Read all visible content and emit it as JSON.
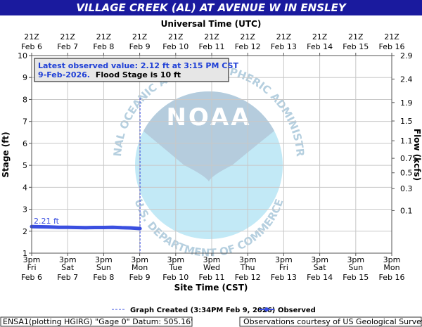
{
  "chart_data": {
    "type": "line",
    "title": "VILLAGE CREEK (AL) AT AVENUE W IN ENSLEY",
    "top_axis_label": "Universal Time (UTC)",
    "xlabel": "Site Time (CST)",
    "ylabel": "Stage (ft)",
    "y2label": "Flow (kcfs)",
    "ylim": [
      1,
      10
    ],
    "yticks": [
      "1",
      "2",
      "3",
      "4",
      "5",
      "6",
      "7",
      "8",
      "9",
      "10"
    ],
    "y2ticks": [
      {
        "label": "0.1",
        "stage": 2.94
      },
      {
        "label": "0.3",
        "stage": 3.94
      },
      {
        "label": "0.5",
        "stage": 4.66
      },
      {
        "label": "0.75",
        "stage": 5.32
      },
      {
        "label": "1.1",
        "stage": 6.12
      },
      {
        "label": "1.5",
        "stage": 7.02
      },
      {
        "label": "1.9",
        "stage": 7.86
      },
      {
        "label": "2.4",
        "stage": 8.93
      },
      {
        "label": "2.9",
        "stage": 10.0
      }
    ],
    "xlim_days": [
      0,
      10
    ],
    "x_ticks_site": [
      {
        "top": "3pm",
        "mid": "Fri",
        "date": "Feb 6"
      },
      {
        "top": "3pm",
        "mid": "Sat",
        "date": "Feb 7"
      },
      {
        "top": "3pm",
        "mid": "Sun",
        "date": "Feb 8"
      },
      {
        "top": "3pm",
        "mid": "Mon",
        "date": "Feb 9"
      },
      {
        "top": "3pm",
        "mid": "Tue",
        "date": "Feb 10"
      },
      {
        "top": "3pm",
        "mid": "Wed",
        "date": "Feb 11"
      },
      {
        "top": "3pm",
        "mid": "Thu",
        "date": "Feb 12"
      },
      {
        "top": "3pm",
        "mid": "Fri",
        "date": "Feb 13"
      },
      {
        "top": "3pm",
        "mid": "Sat",
        "date": "Feb 14"
      },
      {
        "top": "3pm",
        "mid": "Sun",
        "date": "Feb 15"
      },
      {
        "top": "3pm",
        "mid": "Mon",
        "date": "Feb 16"
      }
    ],
    "x_ticks_utc": [
      {
        "time": "21Z",
        "date": "Feb 6"
      },
      {
        "time": "21Z",
        "date": "Feb 7"
      },
      {
        "time": "21Z",
        "date": "Feb 8"
      },
      {
        "time": "21Z",
        "date": "Feb 9"
      },
      {
        "time": "21Z",
        "date": "Feb 10"
      },
      {
        "time": "21Z",
        "date": "Feb 11"
      },
      {
        "time": "21Z",
        "date": "Feb 12"
      },
      {
        "time": "21Z",
        "date": "Feb 13"
      },
      {
        "time": "21Z",
        "date": "Feb 14"
      },
      {
        "time": "21Z",
        "date": "Feb 15"
      },
      {
        "time": "21Z",
        "date": "Feb 16"
      }
    ],
    "series": [
      {
        "name": "Observed",
        "color": "#3a4fe0",
        "x_days": [
          0.0,
          0.25,
          0.5,
          0.75,
          1.0,
          1.25,
          1.5,
          1.75,
          2.0,
          2.25,
          2.5,
          2.75,
          3.0,
          3.01
        ],
        "values": [
          2.21,
          2.2,
          2.19,
          2.18,
          2.18,
          2.17,
          2.16,
          2.17,
          2.17,
          2.18,
          2.16,
          2.15,
          2.12,
          2.12
        ]
      }
    ],
    "first_value_label": "2.21 ft",
    "graph_created_x_days": 3.01,
    "grid": true
  },
  "notice": {
    "line1": "Latest observed value: 2.12 ft at 3:15 PM CST",
    "line2_date": "9-Feb-2026.",
    "line2_rest": "Flood Stage is 10 ft"
  },
  "legend": {
    "created": "Graph Created (3:34PM Feb 9, 2026)",
    "observed": "Observed"
  },
  "footer": {
    "left": "ENSA1(plotting HGIRG) \"Gage 0\" Datum: 505.16'",
    "right": "Observations courtesy of US Geological Survey"
  },
  "watermark": {
    "ring_top": "NATIONAL OCEANIC AND ATMOSPHERIC ADMINISTRATION",
    "ring_bottom": "U.S. DEPARTMENT OF COMMERCE",
    "center": "NOAA"
  },
  "colors": {
    "title_bar": "#1a1a9e",
    "plot_bg": "#ffffff",
    "outer_bg": "#ffffff",
    "series": "#3a4fe0",
    "grid": "#c8c8c8"
  }
}
